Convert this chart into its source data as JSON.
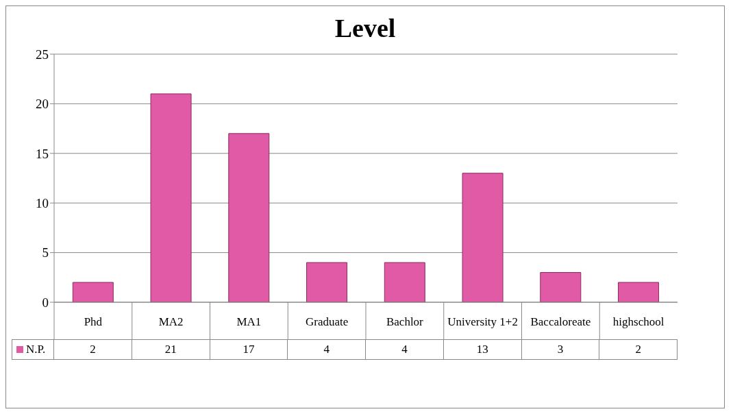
{
  "chart_data": {
    "type": "bar",
    "title": "Level",
    "categories": [
      "Phd",
      "MA2",
      "MA1",
      "Graduate",
      "Bachlor",
      "University 1+2",
      "Baccaloreate",
      "highschool"
    ],
    "series": [
      {
        "name": "N.P.",
        "color": "#e05aa6",
        "values": [
          2,
          21,
          17,
          4,
          4,
          13,
          3,
          2
        ]
      }
    ],
    "ylim": [
      0,
      25
    ],
    "yticks": [
      0,
      5,
      10,
      15,
      20,
      25
    ],
    "grid": "y",
    "legend": "bottom",
    "data_labels": true
  }
}
